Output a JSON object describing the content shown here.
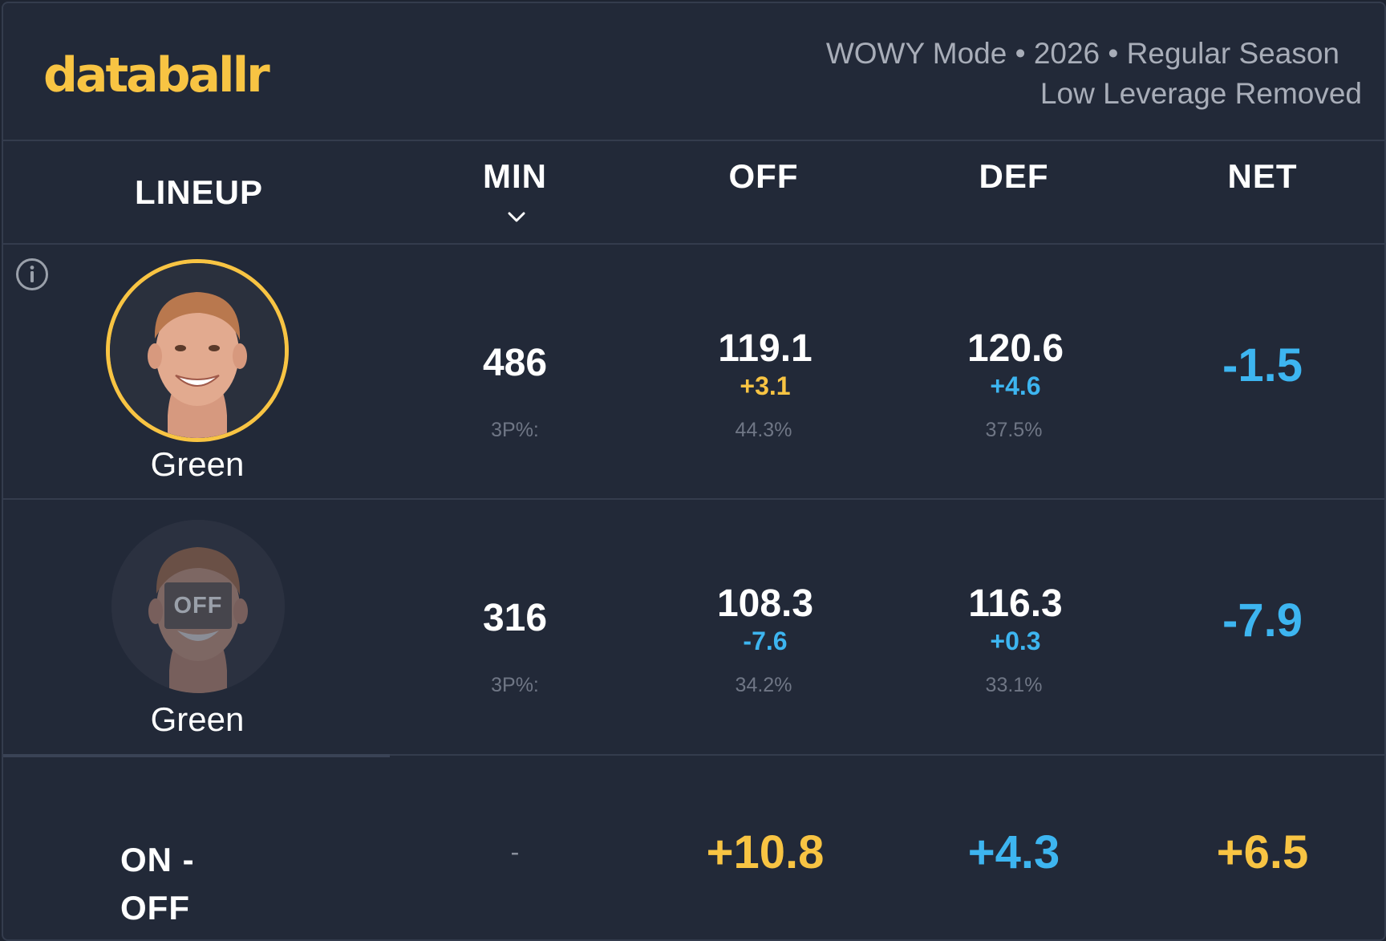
{
  "header": {
    "logo": "databallr",
    "meta_line1": "WOWY Mode • 2026 • Regular Season",
    "meta_line2": "Low Leverage Removed"
  },
  "columns": {
    "lineup": "LINEUP",
    "min": "MIN",
    "off": "OFF",
    "def": "DEF",
    "net": "NET"
  },
  "rows": [
    {
      "player": "Green",
      "status": "on",
      "min": "486",
      "min_sub": "3P%:",
      "off": "119.1",
      "off_delta": "+3.1",
      "off_sub": "44.3%",
      "def": "120.6",
      "def_delta": "+4.6",
      "def_sub": "37.5%",
      "net": "-1.5"
    },
    {
      "player": "Green",
      "status": "off",
      "off_badge": "OFF",
      "min": "316",
      "min_sub": "3P%:",
      "off": "108.3",
      "off_delta": "-7.6",
      "off_sub": "34.2%",
      "def": "116.3",
      "def_delta": "+0.3",
      "def_sub": "33.1%",
      "net": "-7.9"
    }
  ],
  "summary": {
    "label": "ON - OFF",
    "min": "-",
    "off": "+10.8",
    "def": "+4.3",
    "net": "+6.5"
  },
  "colors": {
    "accent_yellow": "#f8c443",
    "accent_blue": "#3db5f0",
    "background": "#222938"
  },
  "icons": {
    "info": "info-icon",
    "sort": "chevron-down-icon"
  }
}
